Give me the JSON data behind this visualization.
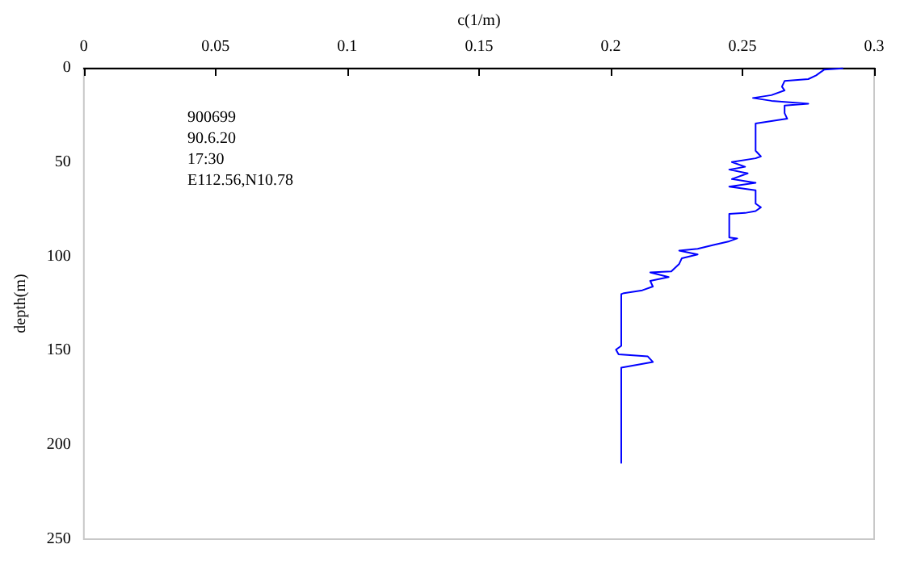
{
  "chart_data": {
    "type": "line",
    "xlabel": "c(1/m)",
    "ylabel": "depth(m)",
    "xlim": [
      0,
      0.3
    ],
    "xticks": [
      0,
      0.05,
      0.1,
      0.15,
      0.2,
      0.25,
      0.3
    ],
    "ylim": [
      250,
      0
    ],
    "yticks": [
      0,
      50,
      100,
      150,
      200,
      250
    ],
    "grid": false,
    "marker": "none",
    "line_style": "solid",
    "annotations": [
      "900699",
      "90.6.20",
      "17:30",
      "E112.56,N10.78"
    ],
    "series": [
      {
        "color": "#0000ff",
        "x": [
          0.288,
          0.281,
          0.278,
          0.275,
          0.266,
          0.265,
          0.266,
          0.261,
          0.254,
          0.261,
          0.275,
          0.266,
          0.266,
          0.267,
          0.255,
          0.255,
          0.257,
          0.255,
          0.246,
          0.251,
          0.245,
          0.252,
          0.246,
          0.255,
          0.245,
          0.255,
          0.255,
          0.257,
          0.255,
          0.251,
          0.245,
          0.245,
          0.248,
          0.245,
          0.239,
          0.233,
          0.226,
          0.233,
          0.227,
          0.226,
          0.223,
          0.215,
          0.222,
          0.215,
          0.216,
          0.212,
          0.205,
          0.204,
          0.204,
          0.202,
          0.203,
          0.214,
          0.216,
          0.204,
          0.204
        ],
        "values": [
          0.3,
          1,
          4,
          6,
          7,
          10,
          12,
          14.5,
          16,
          17.5,
          19,
          20,
          24,
          27,
          29.5,
          44,
          47,
          48,
          50,
          52.5,
          54,
          56,
          59,
          61,
          63,
          65,
          72,
          74,
          76,
          77,
          77.5,
          90,
          90.5,
          92,
          94,
          96,
          97,
          99,
          101,
          104,
          108,
          108.5,
          111,
          113,
          116,
          118,
          119.5,
          120,
          147.5,
          149.5,
          152,
          153,
          156,
          159,
          209.5
        ]
      }
    ]
  }
}
